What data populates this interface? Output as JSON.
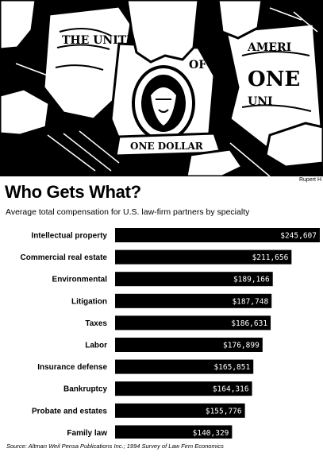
{
  "illustration": {
    "description_icon": "hands-grabbing-dollar-bill-icon",
    "bill_texts": [
      "THE UNITED",
      "OF",
      "AMERI",
      "ONE",
      "UNI",
      "ONE DOLLAR"
    ]
  },
  "credit": "Rupert H",
  "headline": "Who Gets What?",
  "subtitle": "Average total compensation for U.S. law-firm partners by specialty",
  "chart_data": {
    "type": "bar",
    "orientation": "horizontal",
    "categories": [
      "Intellectual property",
      "Commercial real estate",
      "Environmental",
      "Litigation",
      "Taxes",
      "Labor",
      "Insurance defense",
      "Bankruptcy",
      "Probate and estates",
      "Family law"
    ],
    "values": [
      245607,
      211656,
      189166,
      187748,
      186631,
      176899,
      165851,
      164316,
      155776,
      140329
    ],
    "value_labels": [
      "$245,607",
      "$211,656",
      "$189,166",
      "$187,748",
      "$186,631",
      "$176,899",
      "$165,851",
      "$164,316",
      "$155,776",
      "$140,329"
    ],
    "xlim": [
      0,
      245607
    ],
    "bar_color": "#000000",
    "value_label_color": "#ffffff",
    "grid": false,
    "title": "Who Gets What?",
    "subtitle": "Average total compensation for U.S. law-firm partners by specialty"
  },
  "source": "Source: Altman Weil Pensa Publications Inc.; 1994 Survey of Law Firm Economics"
}
